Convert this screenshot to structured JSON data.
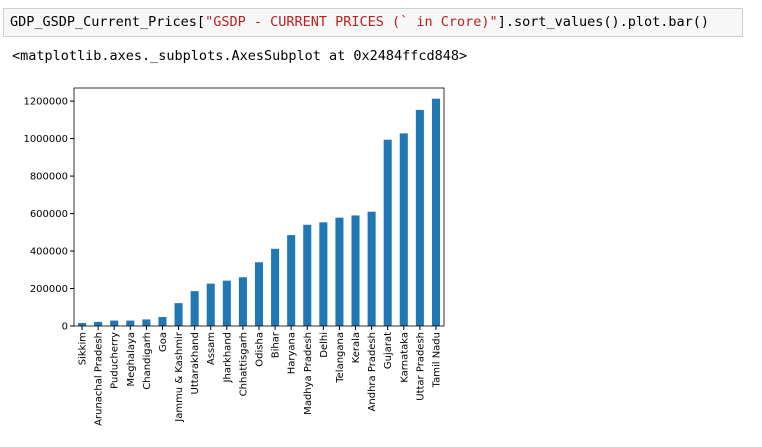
{
  "cell": {
    "code": [
      "GDP_GSDP_Current_Prices[",
      "\"GSDP - CURRENT PRICES (` in Crore)\"",
      "].sort_values().plot.bar()"
    ],
    "output": "<matplotlib.axes._subplots.AxesSubplot at 0x2484ffcd848>"
  },
  "chart_data": {
    "type": "bar",
    "categories": [
      "Sikkim",
      "Arunachal Pradesh",
      "Puducherry",
      "Meghalaya",
      "Chandigarh",
      "Goa",
      "Jammu & Kashmir",
      "Uttarakhand",
      "Assam",
      "Jharkhand",
      "Chhattisgarh",
      "Odisha",
      "Bihar",
      "Haryana",
      "Madhya Pradesh",
      "Delhi",
      "Telangana",
      "Kerala",
      "Andhra Pradesh",
      "Gujarat",
      "Karnataka",
      "Uttar Pradesh",
      "Tamil Nadu"
    ],
    "values": [
      16000,
      22000,
      29000,
      29000,
      35000,
      48000,
      122000,
      186000,
      226000,
      242000,
      260000,
      340000,
      412000,
      485000,
      540000,
      553000,
      578000,
      590000,
      610000,
      994000,
      1028000,
      1153000,
      1213000
    ],
    "color": "#1f77b4",
    "ylim": [
      0,
      1270000
    ],
    "yticks": [
      0,
      200000,
      400000,
      600000,
      800000,
      1000000,
      1200000
    ]
  }
}
